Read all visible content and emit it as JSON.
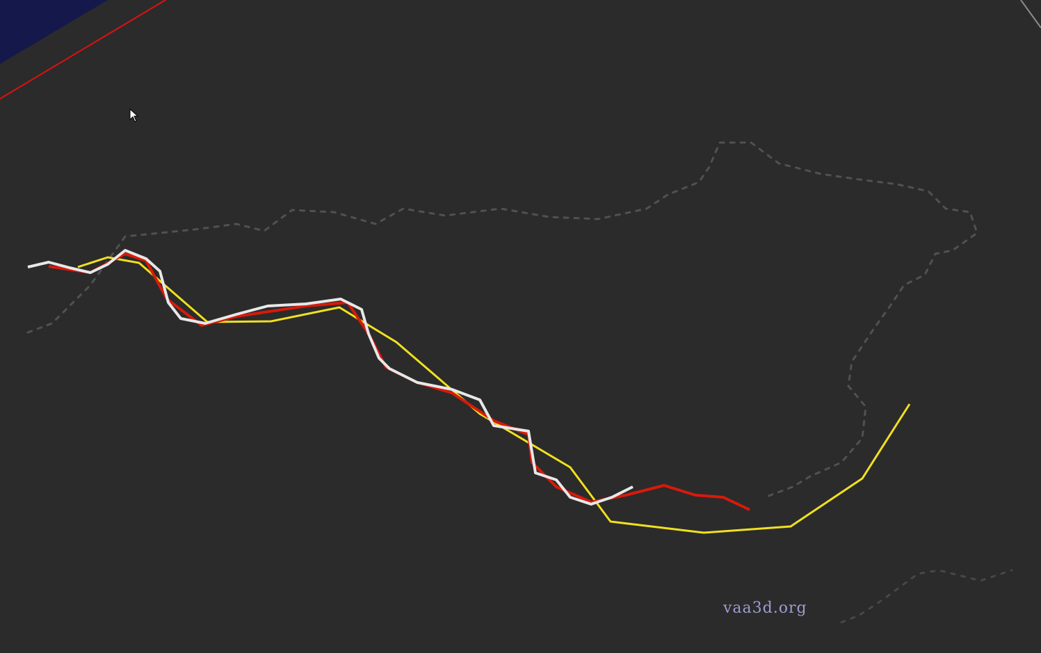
{
  "watermark": "vaa3d.org"
}
